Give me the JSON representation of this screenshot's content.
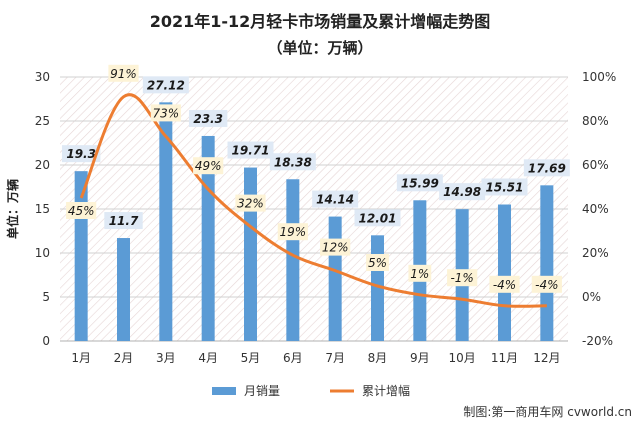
{
  "chart_data": {
    "type": "bar",
    "title": "2021年1-12月轻卡市场销量及累计增幅走势图",
    "subtitle": "（单位：万辆）",
    "ylabel": "单位：万辆",
    "categories": [
      "1月",
      "2月",
      "3月",
      "4月",
      "5月",
      "6月",
      "7月",
      "8月",
      "9月",
      "10月",
      "11月",
      "12月"
    ],
    "series": [
      {
        "name": "月销量",
        "type": "bar",
        "axis": "left",
        "color": "#5B9BD5",
        "values": [
          19.3,
          11.7,
          27.12,
          23.3,
          19.71,
          18.38,
          14.14,
          12.01,
          15.99,
          14.98,
          15.51,
          17.69
        ],
        "labels": [
          "19.3",
          "11.7",
          "27.12",
          "23.3",
          "19.71",
          "18.38",
          "14.14",
          "12.01",
          "15.99",
          "14.98",
          "15.51",
          "17.69"
        ]
      },
      {
        "name": "累计增幅",
        "type": "line",
        "axis": "right",
        "color": "#ED7D31",
        "values": [
          45,
          91,
          73,
          49,
          32,
          19,
          12,
          5,
          1,
          -1,
          -4,
          -4
        ],
        "labels": [
          "45%",
          "91%",
          "73%",
          "49%",
          "32%",
          "19%",
          "12%",
          "5%",
          "1%",
          "-1%",
          "-4%",
          "-4%"
        ]
      }
    ],
    "left_axis": {
      "min": 0,
      "max": 30,
      "ticks": [
        "0",
        "5",
        "10",
        "15",
        "20",
        "25",
        "30"
      ]
    },
    "right_axis": {
      "min": -20,
      "max": 100,
      "ticks": [
        "-20%",
        "0%",
        "20%",
        "40%",
        "60%",
        "80%",
        "100%"
      ]
    },
    "legend_position": "bottom",
    "grid": true,
    "source": "制图:第一商用车网 cvworld.cn"
  }
}
